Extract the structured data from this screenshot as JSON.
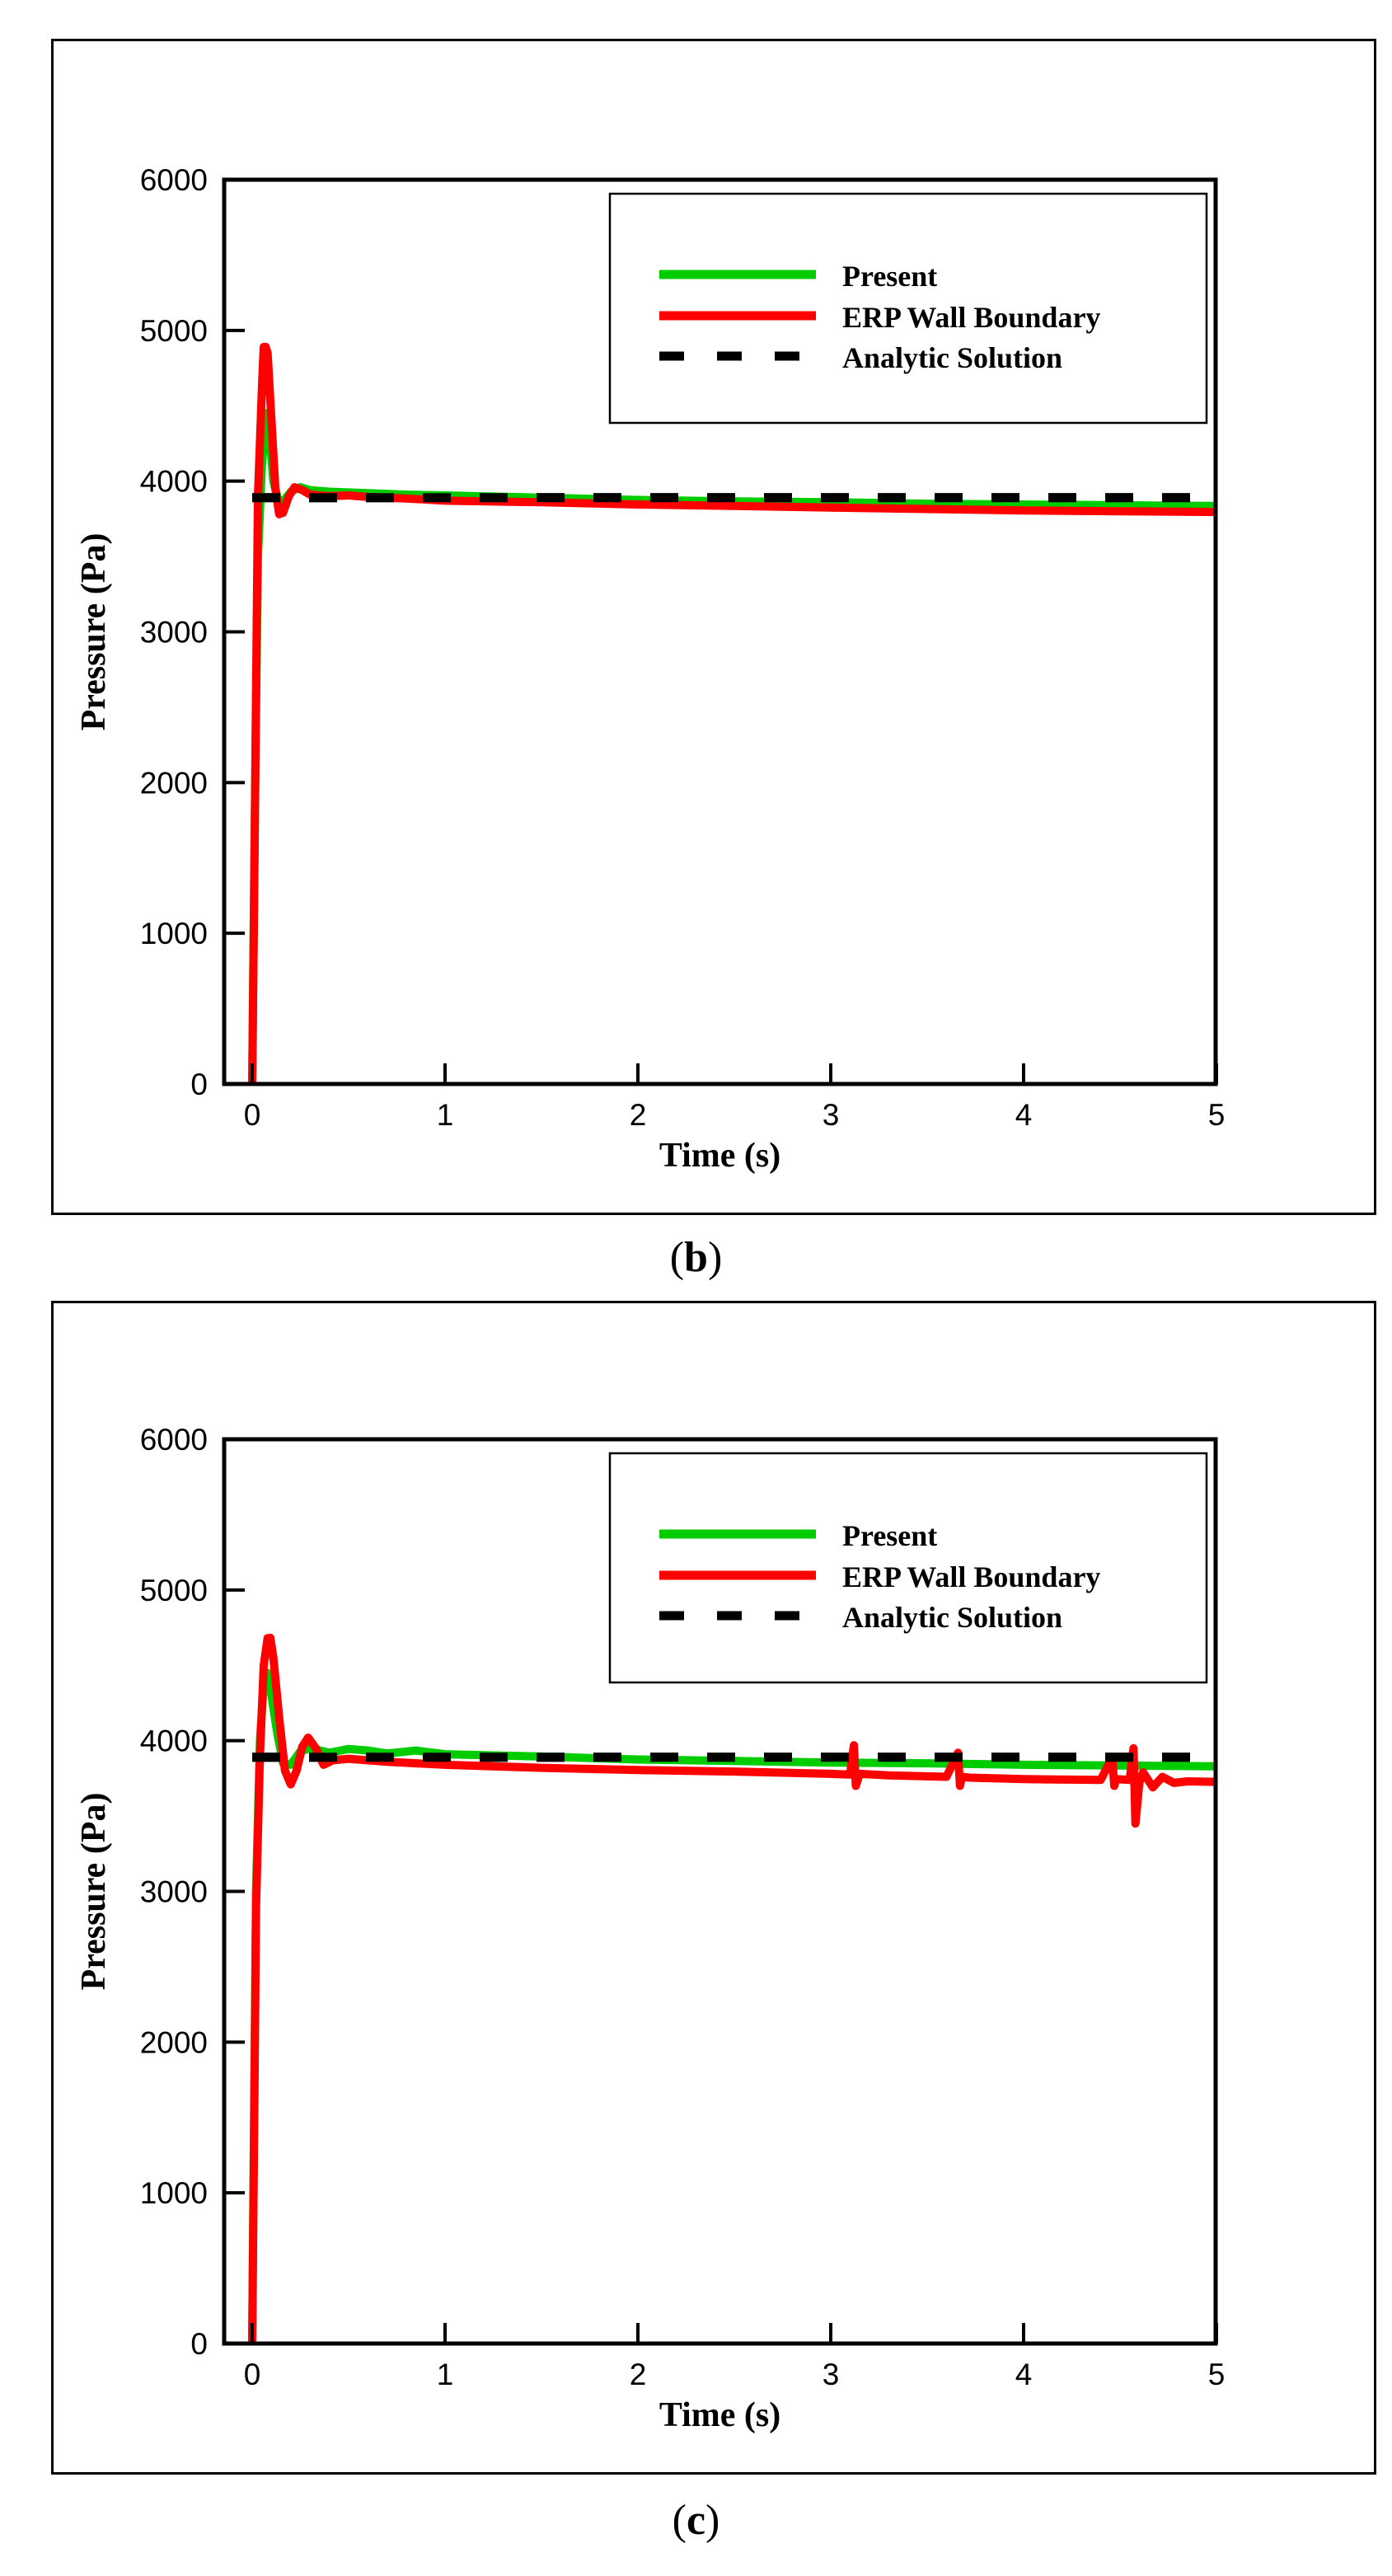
{
  "panels": [
    {
      "caption_open": "(",
      "caption_letter": "b",
      "caption_close": ")",
      "ylabel": "Pressure (Pa)",
      "xlabel": "Time (s)",
      "legend": [
        "Present",
        "ERP Wall Boundary",
        "Analytic Solution"
      ]
    },
    {
      "caption_open": "(",
      "caption_letter": "c",
      "caption_close": ")",
      "ylabel": "Pressure (Pa)",
      "xlabel": "Time (s)",
      "legend": [
        "Present",
        "ERP Wall Boundary",
        "Analytic Solution"
      ]
    }
  ],
  "colors": {
    "present": "#00cc00",
    "erp": "#ff0000",
    "analytic": "#000000"
  },
  "chart_data": [
    {
      "type": "line",
      "title": "(b)",
      "xlabel": "Time (s)",
      "ylabel": "Pressure (Pa)",
      "xlim": [
        -0.15,
        5
      ],
      "ylim": [
        0,
        6000
      ],
      "xticks": [
        0,
        1,
        2,
        3,
        4,
        5
      ],
      "yticks": [
        0,
        1000,
        2000,
        3000,
        4000,
        5000,
        6000
      ],
      "grid": false,
      "legend_position": "upper right",
      "series": [
        {
          "name": "Present",
          "color": "#00cc00",
          "style": "solid",
          "x": [
            0,
            0.01,
            0.02,
            0.03,
            0.05,
            0.07,
            0.09,
            0.11,
            0.14,
            0.17,
            0.2,
            0.25,
            0.3,
            0.4,
            0.5,
            0.6,
            0.8,
            1.0,
            1.5,
            2.0,
            2.5,
            3.0,
            3.5,
            4.0,
            4.5,
            5.0
          ],
          "y": [
            0,
            1300,
            2500,
            3500,
            4100,
            4450,
            4300,
            4000,
            3850,
            3880,
            3930,
            3960,
            3940,
            3930,
            3925,
            3920,
            3910,
            3905,
            3890,
            3875,
            3865,
            3860,
            3850,
            3845,
            3840,
            3835
          ]
        },
        {
          "name": "ERP Wall Boundary",
          "color": "#ff0000",
          "style": "solid",
          "x": [
            0,
            0.01,
            0.02,
            0.03,
            0.05,
            0.06,
            0.07,
            0.08,
            0.1,
            0.12,
            0.14,
            0.16,
            0.19,
            0.22,
            0.26,
            0.3,
            0.4,
            0.5,
            0.6,
            0.8,
            1.0,
            1.5,
            2.0,
            2.5,
            3.0,
            3.5,
            4.0,
            4.5,
            5.0
          ],
          "y": [
            0,
            1200,
            2600,
            3900,
            4600,
            4890,
            4890,
            4850,
            4400,
            3950,
            3780,
            3790,
            3900,
            3960,
            3940,
            3910,
            3900,
            3905,
            3895,
            3885,
            3870,
            3860,
            3845,
            3835,
            3825,
            3815,
            3805,
            3800,
            3795
          ]
        },
        {
          "name": "Analytic Solution",
          "color": "#000000",
          "style": "dashed",
          "x": [
            0,
            5
          ],
          "y": [
            3890,
            3890
          ]
        }
      ]
    },
    {
      "type": "line",
      "title": "(c)",
      "xlabel": "Time (s)",
      "ylabel": "Pressure (Pa)",
      "xlim": [
        -0.15,
        5
      ],
      "ylim": [
        0,
        6000
      ],
      "xticks": [
        0,
        1,
        2,
        3,
        4,
        5
      ],
      "yticks": [
        0,
        1000,
        2000,
        3000,
        4000,
        5000,
        6000
      ],
      "grid": false,
      "legend_position": "upper right",
      "series": [
        {
          "name": "Present",
          "color": "#00cc00",
          "style": "solid",
          "x": [
            0,
            0.01,
            0.02,
            0.04,
            0.06,
            0.08,
            0.1,
            0.13,
            0.16,
            0.2,
            0.25,
            0.3,
            0.4,
            0.5,
            0.6,
            0.7,
            0.85,
            1.0,
            1.5,
            2.0,
            2.5,
            3.0,
            3.5,
            4.0,
            4.5,
            5.0
          ],
          "y": [
            0,
            1500,
            3000,
            4000,
            4380,
            4450,
            4300,
            4050,
            3850,
            3840,
            3930,
            3950,
            3920,
            3945,
            3935,
            3915,
            3935,
            3910,
            3895,
            3875,
            3865,
            3855,
            3850,
            3840,
            3835,
            3830
          ]
        },
        {
          "name": "ERP Wall Boundary",
          "color": "#ff0000",
          "style": "solid",
          "x": [
            0,
            0.01,
            0.02,
            0.04,
            0.06,
            0.08,
            0.094,
            0.11,
            0.14,
            0.17,
            0.2,
            0.23,
            0.26,
            0.29,
            0.33,
            0.37,
            0.42,
            0.5,
            0.7,
            1.0,
            1.5,
            2.0,
            2.5,
            3.0,
            3.1,
            3.12,
            3.13,
            3.15,
            3.3,
            3.6,
            3.66,
            3.67,
            3.68,
            3.72,
            4.0,
            4.4,
            4.46,
            4.47,
            4.48,
            4.55,
            4.57,
            4.58,
            4.6,
            4.62,
            4.67,
            4.72,
            4.78,
            4.85,
            5.0
          ],
          "y": [
            0,
            1400,
            2900,
            3900,
            4500,
            4680,
            4683,
            4550,
            4150,
            3800,
            3710,
            3800,
            3960,
            4020,
            3950,
            3840,
            3870,
            3880,
            3860,
            3840,
            3820,
            3805,
            3795,
            3780,
            3775,
            3970,
            3700,
            3780,
            3770,
            3760,
            3920,
            3700,
            3760,
            3755,
            3745,
            3740,
            3890,
            3700,
            3745,
            3740,
            3950,
            3450,
            3720,
            3790,
            3690,
            3760,
            3720,
            3730,
            3727
          ]
        },
        {
          "name": "Analytic Solution",
          "color": "#000000",
          "style": "dashed",
          "x": [
            0,
            5
          ],
          "y": [
            3890,
            3890
          ]
        }
      ]
    }
  ]
}
